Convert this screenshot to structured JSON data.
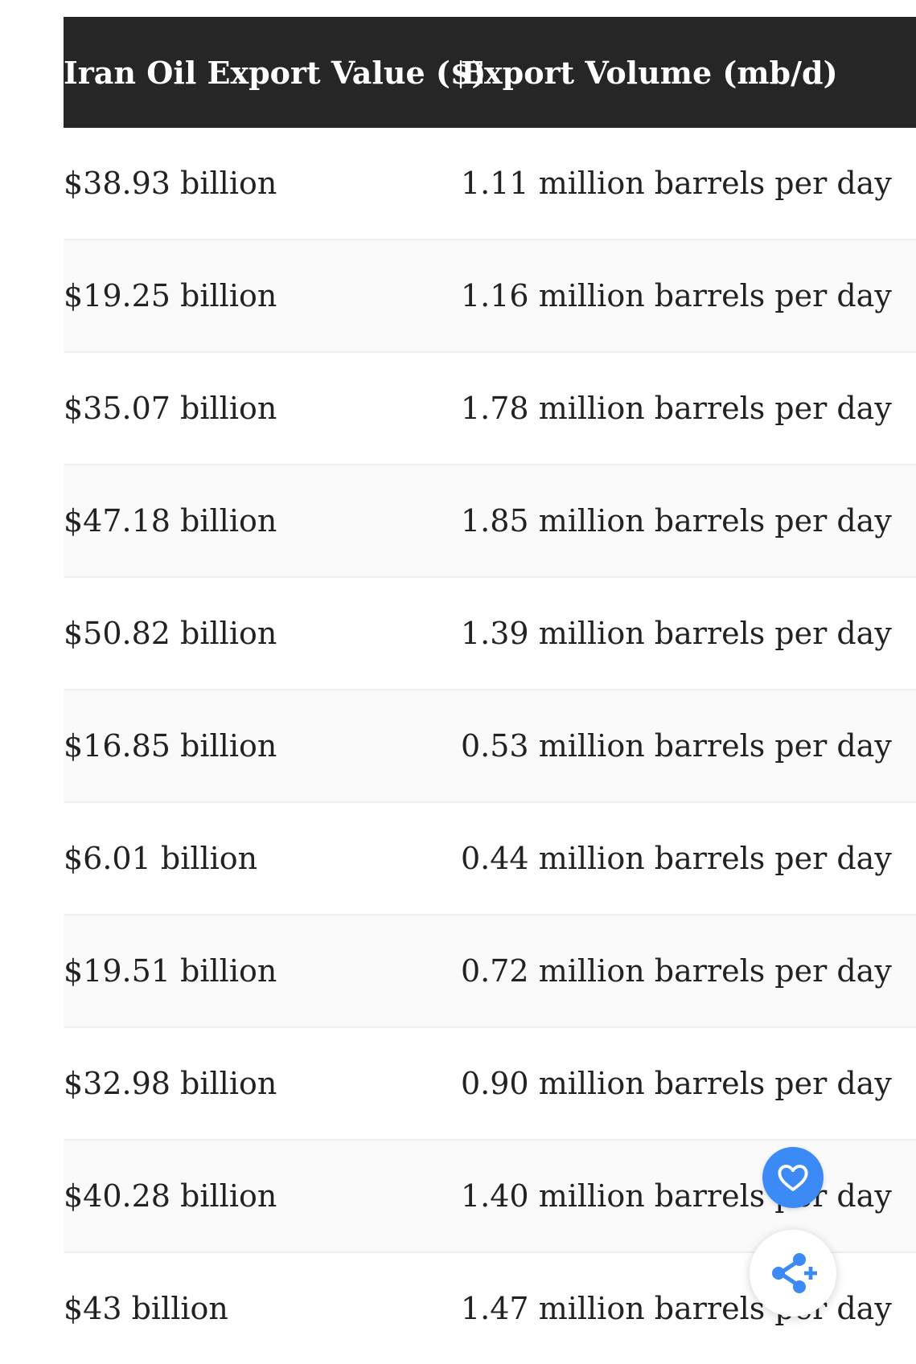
{
  "table": {
    "headers": [
      "Iran Oil Export Value ($)",
      "Export Volume (mb/d)"
    ],
    "rows": [
      {
        "value": "$38.93 billion",
        "volume": "1.11 million barrels per day"
      },
      {
        "value": "$19.25 billion",
        "volume": "1.16 million barrels per day"
      },
      {
        "value": "$35.07 billion",
        "volume": "1.78 million barrels per day"
      },
      {
        "value": "$47.18 billion",
        "volume": "1.85 million barrels per day"
      },
      {
        "value": "$50.82 billion",
        "volume": "1.39 million barrels per day"
      },
      {
        "value": "$16.85 billion",
        "volume": "0.53 million barrels per day"
      },
      {
        "value": "$6.01 billion",
        "volume": "0.44 million barrels per day"
      },
      {
        "value": "$19.51 billion",
        "volume": "0.72 million barrels per day"
      },
      {
        "value": "$32.98 billion",
        "volume": "0.90 million barrels per day"
      },
      {
        "value": "$40.28 billion",
        "volume": "1.40 million barrels per day"
      },
      {
        "value": "$43 billion",
        "volume": "1.47 million barrels per day"
      }
    ]
  },
  "buttons": {
    "favorite_icon": "heart-icon",
    "share_icon": "share-plus-icon"
  },
  "colors": {
    "header_bg": "#262626",
    "accent": "#3b8af6"
  }
}
